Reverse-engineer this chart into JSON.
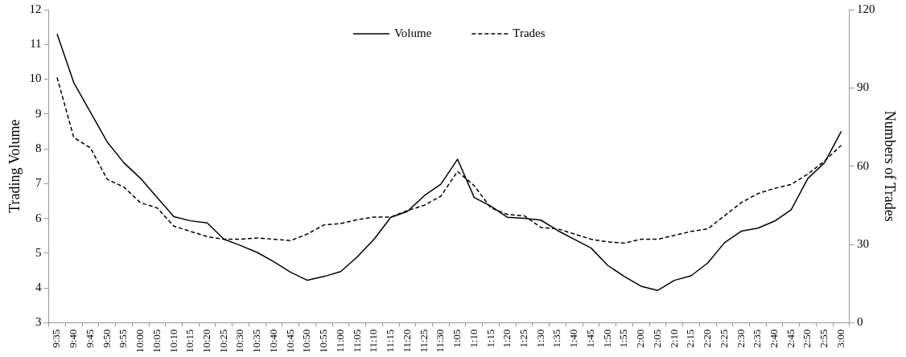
{
  "chart_data": {
    "type": "line",
    "ylabel": "Trading Volume",
    "y2label": "Numbers of Trades",
    "categories": [
      "9:35",
      "9:40",
      "9:45",
      "9:50",
      "9:55",
      "10:00",
      "10:05",
      "10:10",
      "10:15",
      "10:20",
      "10:25",
      "10:30",
      "10:35",
      "10:40",
      "10:45",
      "10:50",
      "10:55",
      "11:00",
      "11:05",
      "11:10",
      "11:15",
      "11:20",
      "11:25",
      "11:30",
      "1:05",
      "1:10",
      "1:15",
      "1:20",
      "1:25",
      "1:30",
      "1:35",
      "1:40",
      "1:45",
      "1:50",
      "1:55",
      "2:00",
      "2:05",
      "2:10",
      "2:15",
      "2:20",
      "2:25",
      "2:30",
      "2:35",
      "2:40",
      "2:45",
      "2:50",
      "2:55",
      "3:00"
    ],
    "series": [
      {
        "name": "Volume",
        "color": "#000000",
        "line_style": "solid",
        "values": [
          11.3,
          9.9,
          9.05,
          8.2,
          7.6,
          7.15,
          6.6,
          6.05,
          5.93,
          5.87,
          5.4,
          5.22,
          5.02,
          4.75,
          4.45,
          4.22,
          4.33,
          4.47,
          4.9,
          5.4,
          6.03,
          6.2,
          6.65,
          6.98,
          7.7,
          6.6,
          6.35,
          6.03,
          6.0,
          5.95,
          5.65,
          5.4,
          5.15,
          4.65,
          4.33,
          4.05,
          3.93,
          4.22,
          4.35,
          4.72,
          5.3,
          5.63,
          5.72,
          5.92,
          6.25,
          7.15,
          7.6,
          8.5
        ]
      },
      {
        "name": "Trades",
        "color": "#000000",
        "line_style": "dashed",
        "axis": "y2",
        "values": [
          94,
          71,
          67,
          55,
          52,
          46,
          44,
          37,
          35,
          33,
          32,
          32,
          32.5,
          32,
          31.5,
          34,
          37.5,
          38,
          39.5,
          40.5,
          40.5,
          43,
          45,
          48.5,
          58,
          52.5,
          44,
          41.5,
          41,
          36.5,
          36,
          34,
          32,
          31,
          30.5,
          32,
          32,
          33.5,
          35,
          36,
          41,
          46,
          49.5,
          51.5,
          53,
          57,
          62,
          68
        ]
      }
    ],
    "ylim": [
      3,
      12
    ],
    "yticks": [
      3,
      4,
      5,
      6,
      7,
      8,
      9,
      10,
      11,
      12
    ],
    "y2lim": [
      0,
      120
    ],
    "y2ticks": [
      0,
      30,
      60,
      90,
      120
    ],
    "grid": false,
    "legend": "top",
    "marker": "none"
  }
}
